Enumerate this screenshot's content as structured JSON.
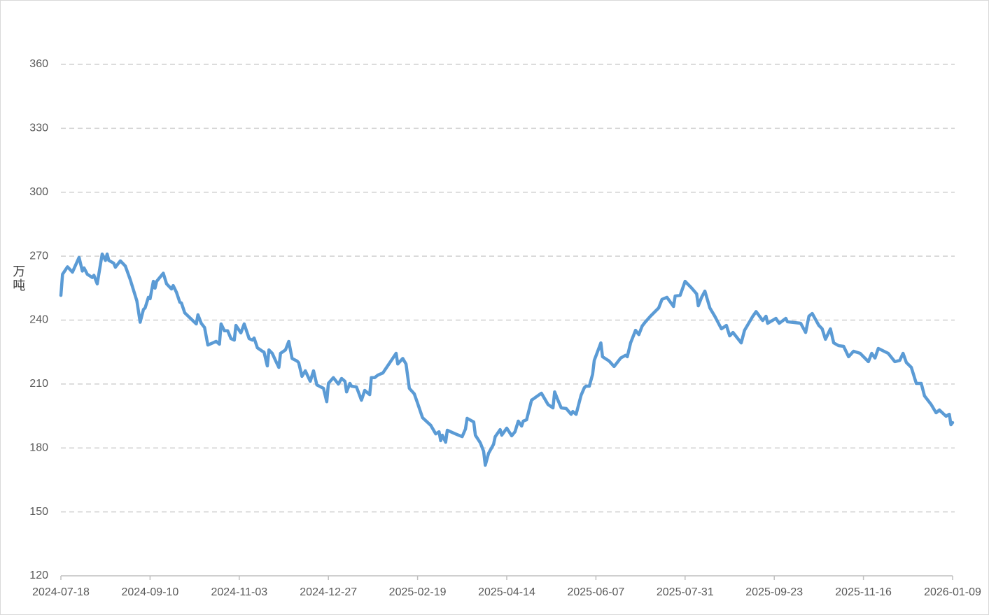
{
  "chart_data": {
    "type": "line",
    "ylabel": "万吨",
    "color": "#5b9bd5",
    "grid": true,
    "xlim": [
      "2024-07-18",
      "2026-01-09"
    ],
    "xticks": [
      "2024-07-18",
      "2024-09-10",
      "2024-11-03",
      "2024-12-27",
      "2025-02-19",
      "2025-04-14",
      "2025-06-07",
      "2025-07-31",
      "2025-09-23",
      "2025-11-16",
      "2026-01-09"
    ],
    "ylim": [
      120,
      360
    ],
    "yticks": [
      120,
      150,
      180,
      210,
      240,
      270,
      300,
      330,
      360
    ],
    "x": [
      "2024-07-18",
      "2024-07-19",
      "2024-07-22",
      "2024-07-25",
      "2024-07-29",
      "2024-07-31",
      "2024-08-01",
      "2024-08-03",
      "2024-08-06",
      "2024-08-07",
      "2024-08-09",
      "2024-08-12",
      "2024-08-14",
      "2024-08-15",
      "2024-08-16",
      "2024-08-19",
      "2024-08-20",
      "2024-08-23",
      "2024-08-26",
      "2024-08-29",
      "2024-09-02",
      "2024-09-04",
      "2024-09-06",
      "2024-09-07",
      "2024-09-09",
      "2024-09-10",
      "2024-09-12",
      "2024-09-13",
      "2024-09-14",
      "2024-09-18",
      "2024-09-20",
      "2024-09-23",
      "2024-09-24",
      "2024-09-26",
      "2024-09-28",
      "2024-09-29",
      "2024-10-01",
      "2024-10-08",
      "2024-10-09",
      "2024-10-11",
      "2024-10-13",
      "2024-10-15",
      "2024-10-18",
      "2024-10-20",
      "2024-10-22",
      "2024-10-23",
      "2024-10-25",
      "2024-10-27",
      "2024-10-29",
      "2024-10-31",
      "2024-11-01",
      "2024-11-04",
      "2024-11-06",
      "2024-11-09",
      "2024-11-11",
      "2024-11-12",
      "2024-11-14",
      "2024-11-17",
      "2024-11-18",
      "2024-11-20",
      "2024-11-21",
      "2024-11-23",
      "2024-11-25",
      "2024-11-27",
      "2024-11-28",
      "2024-12-01",
      "2024-12-03",
      "2024-12-05",
      "2024-12-08",
      "2024-12-09",
      "2024-12-11",
      "2024-12-13",
      "2024-12-16",
      "2024-12-18",
      "2024-12-20",
      "2024-12-24",
      "2024-12-26",
      "2024-12-27",
      "2024-12-30",
      "2025-01-02",
      "2025-01-04",
      "2025-01-06",
      "2025-01-07",
      "2025-01-09",
      "2025-01-10",
      "2025-01-13",
      "2025-01-16",
      "2025-01-18",
      "2025-01-21",
      "2025-01-22",
      "2025-01-24",
      "2025-01-26",
      "2025-01-29",
      "2025-02-06",
      "2025-02-07",
      "2025-02-10",
      "2025-02-12",
      "2025-02-14",
      "2025-02-17",
      "2025-02-19",
      "2025-02-22",
      "2025-02-27",
      "2025-03-02",
      "2025-03-04",
      "2025-03-05",
      "2025-03-06",
      "2025-03-08",
      "2025-03-09",
      "2025-03-14",
      "2025-03-18",
      "2025-03-20",
      "2025-03-21",
      "2025-03-25",
      "2025-03-26",
      "2025-03-29",
      "2025-03-31",
      "2025-04-01",
      "2025-04-03",
      "2025-04-06",
      "2025-04-07",
      "2025-04-10",
      "2025-04-11",
      "2025-04-14",
      "2025-04-17",
      "2025-04-19",
      "2025-04-21",
      "2025-04-23",
      "2025-04-24",
      "2025-04-26",
      "2025-04-29",
      "2025-05-05",
      "2025-05-09",
      "2025-05-12",
      "2025-05-13",
      "2025-05-15",
      "2025-05-17",
      "2025-05-20",
      "2025-05-23",
      "2025-05-24",
      "2025-05-26",
      "2025-05-29",
      "2025-05-31",
      "2025-06-01",
      "2025-06-03",
      "2025-06-05",
      "2025-06-06",
      "2025-06-10",
      "2025-06-11",
      "2025-06-15",
      "2025-06-18",
      "2025-06-22",
      "2025-06-25",
      "2025-06-26",
      "2025-06-28",
      "2025-07-01",
      "2025-07-03",
      "2025-07-05",
      "2025-07-07",
      "2025-07-10",
      "2025-07-15",
      "2025-07-17",
      "2025-07-20",
      "2025-07-24",
      "2025-07-25",
      "2025-07-28",
      "2025-07-31",
      "2025-08-04",
      "2025-08-07",
      "2025-08-08",
      "2025-08-10",
      "2025-08-12",
      "2025-08-15",
      "2025-08-18",
      "2025-08-22",
      "2025-08-25",
      "2025-08-27",
      "2025-08-29",
      "2025-09-03",
      "2025-09-05",
      "2025-09-10",
      "2025-09-12",
      "2025-09-16",
      "2025-09-18",
      "2025-09-19",
      "2025-09-24",
      "2025-09-26",
      "2025-09-30",
      "2025-10-01",
      "2025-10-09",
      "2025-10-12",
      "2025-10-14",
      "2025-10-16",
      "2025-10-20",
      "2025-10-22",
      "2025-10-24",
      "2025-10-27",
      "2025-10-29",
      "2025-11-01",
      "2025-11-04",
      "2025-11-07",
      "2025-11-10",
      "2025-11-14",
      "2025-11-19",
      "2025-11-21",
      "2025-11-23",
      "2025-11-25",
      "2025-12-01",
      "2025-12-05",
      "2025-12-08",
      "2025-12-10",
      "2025-12-12",
      "2025-12-15",
      "2025-12-18",
      "2025-12-21",
      "2025-12-23",
      "2025-12-27",
      "2025-12-30",
      "2026-01-01",
      "2026-01-05",
      "2026-01-07",
      "2026-01-08",
      "2026-01-09"
    ],
    "values": [
      251.6,
      261.5,
      265,
      262.5,
      269.4,
      263,
      264.5,
      261.5,
      260,
      261,
      257,
      271,
      268,
      271,
      268,
      266.7,
      264.8,
      267.8,
      265.4,
      259,
      249,
      239,
      245,
      245.7,
      250.7,
      250,
      258.2,
      255,
      258.2,
      262,
      257,
      254.6,
      256.2,
      253,
      248.4,
      248,
      243.4,
      238.2,
      242.5,
      238.5,
      236.5,
      228.3,
      229.3,
      230,
      228.7,
      238.2,
      235,
      235,
      231.3,
      230.6,
      237.5,
      234,
      238.2,
      231.3,
      230.6,
      231.6,
      227,
      225.4,
      225,
      218.5,
      226,
      224.4,
      221,
      217.8,
      224.4,
      226,
      230,
      222,
      220.8,
      220,
      213.6,
      216.2,
      211.3,
      216.2,
      209.6,
      208,
      201.7,
      210.3,
      213,
      210,
      212.6,
      211.3,
      206.3,
      210.3,
      209,
      208.6,
      202.4,
      207,
      205,
      213,
      213,
      214.2,
      215.2,
      224.4,
      219.4,
      222,
      219.4,
      208,
      205.4,
      201,
      194.2,
      190.6,
      186.6,
      187.6,
      183.4,
      186,
      182.7,
      188.3,
      186.6,
      185.3,
      188.9,
      193.9,
      192.2,
      186,
      182.4,
      178.4,
      171.9,
      177.5,
      181.7,
      185.3,
      188.6,
      186,
      189.3,
      185.7,
      187.6,
      192.6,
      190.3,
      192.6,
      193.2,
      202.4,
      205.7,
      200.4,
      198.8,
      206.3,
      202.4,
      198.8,
      198.5,
      195.8,
      197.1,
      195.8,
      204.7,
      208.3,
      209,
      209,
      214.6,
      221.1,
      229.3,
      222.8,
      220.8,
      218.2,
      222.2,
      223.5,
      222.8,
      229.3,
      235.2,
      233.2,
      237.2,
      239.2,
      241.8,
      245.7,
      249.7,
      250.7,
      246.4,
      251.3,
      251.6,
      258.2,
      255,
      252.3,
      246.7,
      250.7,
      253.6,
      245.7,
      241.8,
      235.9,
      237.5,
      232.6,
      234.2,
      229.3,
      235.2,
      241.8,
      244,
      239.8,
      241.8,
      238.5,
      240.8,
      238.5,
      240.8,
      239.2,
      238.5,
      234.2,
      241.8,
      243.1,
      237.5,
      235.9,
      231,
      235.9,
      229.3,
      228,
      227.7,
      222.8,
      225.4,
      224.4,
      220.5,
      224.4,
      222.2,
      226.7,
      224.4,
      220.5,
      221.1,
      224.4,
      220.1,
      217.8,
      210.3,
      210.3,
      204.4,
      200.4,
      196.5,
      197.8,
      194.9,
      195.8,
      190.9,
      191.9
    ]
  }
}
